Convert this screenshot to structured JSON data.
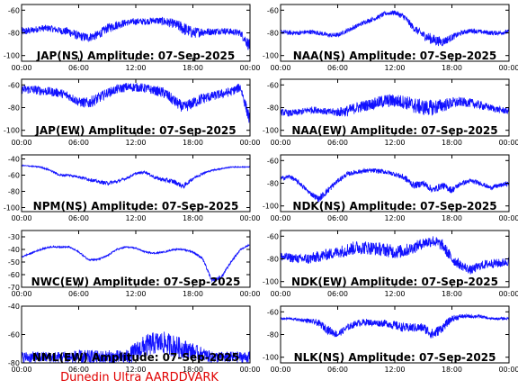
{
  "footer": "Dunedin Ultra AARDDVARK",
  "colors": {
    "trace": "#1010ff",
    "footer": "#e00000",
    "axes": "#000000"
  },
  "chart_data": [
    {
      "type": "line",
      "title": "JAP(NS) Amplitude: 07-Sep-2025",
      "ylim": [
        -105,
        -55
      ],
      "yticks": [
        "-60",
        "-80",
        "-100"
      ],
      "xticks": [
        "00:00",
        "06:00",
        "12:00",
        "18:00",
        "00:00"
      ],
      "series": [
        {
          "x": [
            "00:00",
            "01:00",
            "02:00",
            "03:00",
            "04:00",
            "05:00",
            "06:00",
            "07:00",
            "08:00",
            "09:00",
            "10:00",
            "11:00",
            "12:00",
            "13:00",
            "14:00",
            "15:00",
            "16:00",
            "17:00",
            "18:00",
            "19:00",
            "20:00",
            "21:00",
            "22:00",
            "23:00",
            "24:00"
          ],
          "y": [
            -79,
            -78,
            -76,
            -76,
            -78,
            -79,
            -83,
            -84,
            -82,
            -76,
            -73,
            -71,
            -70,
            -70,
            -69,
            -70,
            -72,
            -76,
            -80,
            -79,
            -79,
            -78,
            -79,
            -80,
            -92
          ],
          "noise": [
            4,
            3,
            3,
            3,
            3,
            4,
            4,
            4,
            4,
            4,
            4,
            3,
            3,
            3,
            3,
            4,
            4,
            6,
            5,
            4,
            3,
            3,
            3,
            3,
            6
          ]
        }
      ]
    },
    {
      "type": "line",
      "title": "NAA(NS) Amplitude: 07-Sep-2025",
      "ylim": [
        -105,
        -55
      ],
      "yticks": [
        "-60",
        "-80",
        "-100"
      ],
      "xticks": [
        "00:00",
        "06:00",
        "12:00",
        "18:00",
        "00:00"
      ],
      "series": [
        {
          "x": [
            "00:00",
            "01:00",
            "02:00",
            "03:00",
            "04:00",
            "05:00",
            "06:00",
            "07:00",
            "08:00",
            "09:00",
            "10:00",
            "11:00",
            "12:00",
            "13:00",
            "14:00",
            "15:00",
            "16:00",
            "17:00",
            "18:00",
            "19:00",
            "20:00",
            "21:00",
            "22:00",
            "23:00",
            "24:00"
          ],
          "y": [
            -79,
            -80,
            -80,
            -79,
            -80,
            -82,
            -82,
            -78,
            -74,
            -70,
            -67,
            -63,
            -62,
            -66,
            -76,
            -82,
            -86,
            -88,
            -84,
            -80,
            -78,
            -79,
            -80,
            -80,
            -79
          ],
          "noise": [
            2,
            2,
            2,
            2,
            2,
            2,
            2,
            2,
            2,
            2,
            2,
            2,
            2,
            3,
            3,
            4,
            5,
            4,
            3,
            2,
            2,
            2,
            2,
            2,
            2
          ]
        }
      ]
    },
    {
      "type": "line",
      "title": "JAP(EW) Amplitude: 07-Sep-2025",
      "ylim": [
        -105,
        -55
      ],
      "yticks": [
        "-60",
        "-80",
        "-100"
      ],
      "xticks": [
        "00:00",
        "06:00",
        "12:00",
        "18:00",
        "00:00"
      ],
      "series": [
        {
          "x": [
            "00:00",
            "01:00",
            "02:00",
            "03:00",
            "04:00",
            "05:00",
            "06:00",
            "07:00",
            "08:00",
            "09:00",
            "10:00",
            "11:00",
            "12:00",
            "13:00",
            "14:00",
            "15:00",
            "16:00",
            "17:00",
            "18:00",
            "19:00",
            "20:00",
            "21:00",
            "22:00",
            "23:00",
            "24:00"
          ],
          "y": [
            -64,
            -64,
            -65,
            -66,
            -67,
            -70,
            -75,
            -76,
            -72,
            -67,
            -64,
            -62,
            -62,
            -63,
            -65,
            -67,
            -74,
            -80,
            -76,
            -72,
            -70,
            -68,
            -66,
            -62,
            -92
          ],
          "noise": [
            4,
            4,
            4,
            4,
            4,
            4,
            4,
            5,
            5,
            4,
            4,
            4,
            4,
            4,
            4,
            5,
            5,
            5,
            5,
            5,
            4,
            4,
            4,
            4,
            6
          ]
        }
      ]
    },
    {
      "type": "line",
      "title": "NAA(EW) Amplitude: 07-Sep-2025",
      "ylim": [
        -105,
        -55
      ],
      "yticks": [
        "-60",
        "-80",
        "-100"
      ],
      "xticks": [
        "00:00",
        "06:00",
        "12:00",
        "18:00",
        "00:00"
      ],
      "series": [
        {
          "x": [
            "00:00",
            "01:00",
            "02:00",
            "03:00",
            "04:00",
            "05:00",
            "06:00",
            "07:00",
            "08:00",
            "09:00",
            "10:00",
            "11:00",
            "12:00",
            "13:00",
            "14:00",
            "15:00",
            "16:00",
            "17:00",
            "18:00",
            "19:00",
            "20:00",
            "21:00",
            "22:00",
            "23:00",
            "24:00"
          ],
          "y": [
            -84,
            -85,
            -84,
            -82,
            -82,
            -84,
            -84,
            -83,
            -80,
            -78,
            -76,
            -74,
            -74,
            -75,
            -78,
            -80,
            -80,
            -78,
            -76,
            -75,
            -76,
            -78,
            -80,
            -82,
            -83
          ],
          "noise": [
            3,
            3,
            3,
            3,
            3,
            3,
            4,
            5,
            5,
            5,
            5,
            6,
            6,
            6,
            7,
            7,
            7,
            6,
            5,
            4,
            4,
            4,
            3,
            3,
            3
          ]
        }
      ]
    },
    {
      "type": "line",
      "title": "NPM(NS) Amplitude: 07-Sep-2025",
      "ylim": [
        -105,
        -35
      ],
      "yticks": [
        "-40",
        "-60",
        "-80",
        "-100"
      ],
      "xticks": [
        "00:00",
        "06:00",
        "12:00",
        "18:00",
        "00:00"
      ],
      "series": [
        {
          "x": [
            "00:00",
            "01:00",
            "02:00",
            "03:00",
            "04:00",
            "05:00",
            "06:00",
            "07:00",
            "08:00",
            "09:00",
            "10:00",
            "11:00",
            "12:00",
            "13:00",
            "14:00",
            "15:00",
            "16:00",
            "17:00",
            "18:00",
            "19:00",
            "20:00",
            "21:00",
            "22:00",
            "23:00",
            "24:00"
          ],
          "y": [
            -48,
            -49,
            -50,
            -54,
            -60,
            -60,
            -62,
            -65,
            -68,
            -70,
            -68,
            -64,
            -58,
            -56,
            -63,
            -66,
            -68,
            -74,
            -64,
            -58,
            -54,
            -52,
            -50,
            -50,
            -50
          ],
          "noise": [
            0.6,
            0.6,
            0.8,
            1,
            1.5,
            1.5,
            1.5,
            2,
            2,
            2.5,
            2,
            1.5,
            1.5,
            1.5,
            2,
            3,
            3,
            3,
            2,
            1.5,
            1,
            0.8,
            0.6,
            0.6,
            0.6
          ]
        }
      ]
    },
    {
      "type": "line",
      "title": "NDK(NS) Amplitude: 07-Sep-2025",
      "ylim": [
        -105,
        -55
      ],
      "yticks": [
        "-60",
        "-80",
        "-100"
      ],
      "xticks": [
        "00:00",
        "06:00",
        "12:00",
        "18:00",
        "00:00"
      ],
      "series": [
        {
          "x": [
            "00:00",
            "01:00",
            "02:00",
            "03:00",
            "04:00",
            "05:00",
            "06:00",
            "07:00",
            "08:00",
            "09:00",
            "10:00",
            "11:00",
            "12:00",
            "13:00",
            "14:00",
            "15:00",
            "16:00",
            "17:00",
            "18:00",
            "19:00",
            "20:00",
            "21:00",
            "22:00",
            "23:00",
            "24:00"
          ],
          "y": [
            -76,
            -74,
            -80,
            -88,
            -94,
            -86,
            -78,
            -72,
            -70,
            -69,
            -69,
            -70,
            -72,
            -75,
            -82,
            -80,
            -86,
            -82,
            -86,
            -80,
            -78,
            -80,
            -84,
            -82,
            -80
          ],
          "noise": [
            2,
            2,
            2,
            2,
            3,
            3,
            2,
            2,
            2,
            2,
            2,
            2,
            2,
            3,
            3,
            3,
            3,
            3,
            3,
            2,
            2,
            2,
            2,
            2,
            2
          ]
        }
      ]
    },
    {
      "type": "line",
      "title": "NWC(EW) Amplitude: 07-Sep-2025",
      "ylim": [
        -70,
        -25
      ],
      "yticks": [
        "-30",
        "-40",
        "-50",
        "-60",
        "-70"
      ],
      "xticks": [
        "00:00",
        "06:00",
        "12:00",
        "18:00",
        "00:00"
      ],
      "series": [
        {
          "x": [
            "00:00",
            "01:00",
            "02:00",
            "03:00",
            "04:00",
            "05:00",
            "06:00",
            "07:00",
            "08:00",
            "09:00",
            "10:00",
            "11:00",
            "12:00",
            "13:00",
            "14:00",
            "15:00",
            "16:00",
            "17:00",
            "18:00",
            "19:00",
            "20:00",
            "21:00",
            "22:00",
            "23:00",
            "24:00"
          ],
          "y": [
            -46,
            -43,
            -40,
            -38,
            -38,
            -38,
            -42,
            -48,
            -48,
            -45,
            -40,
            -38,
            -39,
            -42,
            -43,
            -42,
            -40,
            -40,
            -42,
            -47,
            -65,
            -62,
            -50,
            -40,
            -36
          ],
          "noise": [
            0.6,
            0.6,
            0.6,
            0.6,
            0.6,
            0.6,
            0.6,
            0.7,
            0.7,
            0.6,
            0.6,
            0.6,
            0.6,
            0.6,
            0.6,
            0.6,
            0.6,
            0.6,
            0.8,
            1,
            1.5,
            1.5,
            1,
            0.6,
            0.6
          ]
        }
      ]
    },
    {
      "type": "line",
      "title": "NDK(EW) Amplitude: 07-Sep-2025",
      "ylim": [
        -105,
        -55
      ],
      "yticks": [
        "-60",
        "-80",
        "-100"
      ],
      "xticks": [
        "00:00",
        "06:00",
        "12:00",
        "18:00",
        "00:00"
      ],
      "series": [
        {
          "x": [
            "00:00",
            "01:00",
            "02:00",
            "03:00",
            "04:00",
            "05:00",
            "06:00",
            "07:00",
            "08:00",
            "09:00",
            "10:00",
            "11:00",
            "12:00",
            "13:00",
            "14:00",
            "15:00",
            "16:00",
            "17:00",
            "18:00",
            "19:00",
            "20:00",
            "21:00",
            "22:00",
            "23:00",
            "24:00"
          ],
          "y": [
            -78,
            -79,
            -80,
            -80,
            -78,
            -76,
            -74,
            -72,
            -70,
            -70,
            -71,
            -72,
            -74,
            -73,
            -70,
            -66,
            -64,
            -68,
            -80,
            -86,
            -90,
            -86,
            -84,
            -84,
            -82
          ],
          "noise": [
            4,
            4,
            4,
            5,
            5,
            5,
            5,
            6,
            6,
            6,
            6,
            6,
            6,
            6,
            5,
            5,
            5,
            5,
            5,
            4,
            4,
            4,
            4,
            4,
            4
          ]
        }
      ]
    },
    {
      "type": "line",
      "title": "NML(EW) Amplitude: 07-Sep-2025",
      "ylim": [
        -80,
        -40
      ],
      "yticks": [
        "-40",
        "-60",
        "-80"
      ],
      "xticks": [
        "00:00",
        "06:00",
        "12:00",
        "18:00",
        "00:00"
      ],
      "series": [
        {
          "x": [
            "00:00",
            "01:00",
            "02:00",
            "03:00",
            "04:00",
            "05:00",
            "06:00",
            "07:00",
            "08:00",
            "09:00",
            "10:00",
            "11:00",
            "12:00",
            "13:00",
            "14:00",
            "15:00",
            "16:00",
            "17:00",
            "18:00",
            "19:00",
            "20:00",
            "21:00",
            "22:00",
            "23:00",
            "24:00"
          ],
          "y": [
            -76,
            -76,
            -76,
            -76,
            -76,
            -76,
            -76,
            -76,
            -76,
            -76,
            -76,
            -76,
            -72,
            -68,
            -66,
            -66,
            -68,
            -70,
            -72,
            -74,
            -76,
            -76,
            -76,
            -76,
            -76
          ],
          "noise": [
            4,
            4,
            4,
            4,
            4,
            5,
            5,
            5,
            5,
            5,
            5,
            5,
            7,
            8,
            8,
            8,
            8,
            7,
            6,
            5,
            4,
            4,
            4,
            4,
            4
          ]
        }
      ]
    },
    {
      "type": "line",
      "title": "NLK(NS) Amplitude: 07-Sep-2025",
      "ylim": [
        -105,
        -55
      ],
      "yticks": [
        "-60",
        "-80",
        "-100"
      ],
      "xticks": [
        "00:00",
        "06:00",
        "12:00",
        "18:00",
        "00:00"
      ],
      "series": [
        {
          "x": [
            "00:00",
            "01:00",
            "02:00",
            "03:00",
            "04:00",
            "05:00",
            "06:00",
            "07:00",
            "08:00",
            "09:00",
            "10:00",
            "11:00",
            "12:00",
            "13:00",
            "14:00",
            "15:00",
            "16:00",
            "17:00",
            "18:00",
            "19:00",
            "20:00",
            "21:00",
            "22:00",
            "23:00",
            "24:00"
          ],
          "y": [
            -66,
            -66,
            -67,
            -68,
            -70,
            -76,
            -80,
            -74,
            -70,
            -69,
            -70,
            -70,
            -72,
            -74,
            -74,
            -74,
            -80,
            -74,
            -66,
            -64,
            -64,
            -64,
            -66,
            -66,
            -66
          ],
          "noise": [
            0.8,
            1,
            1.2,
            2,
            3,
            4,
            3,
            3,
            3,
            3,
            3,
            3,
            4,
            4,
            4,
            4,
            5,
            4,
            3,
            2,
            1.5,
            1.5,
            1,
            1,
            1
          ]
        }
      ]
    }
  ]
}
